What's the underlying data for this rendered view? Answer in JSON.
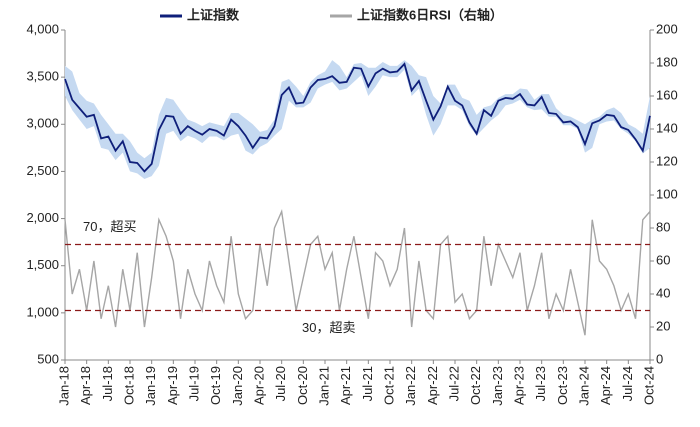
{
  "chart_data": {
    "type": "line",
    "categories": [
      "Jan-18",
      null,
      null,
      "Apr-18",
      null,
      null,
      "Jul-18",
      null,
      null,
      "Oct-18",
      null,
      null,
      "Jan-19",
      null,
      null,
      "Apr-19",
      null,
      null,
      "Jul-19",
      null,
      null,
      "Oct-19",
      null,
      null,
      "Jan-20",
      null,
      null,
      "Apr-20",
      null,
      null,
      "Jul-20",
      null,
      null,
      "Oct-20",
      null,
      null,
      "Jan-21",
      null,
      null,
      "Apr-21",
      null,
      null,
      "Jul-21",
      null,
      null,
      "Oct-21",
      null,
      null,
      "Jan-22",
      null,
      null,
      "Apr-22",
      null,
      null,
      "Jul-22",
      null,
      null,
      "Oct-22",
      null,
      null,
      "Jan-23",
      null,
      null,
      "Apr-23",
      null,
      null,
      "Jul-23",
      null,
      null,
      "Oct-23",
      null,
      null,
      "Jan-24",
      null,
      null,
      "Apr-24",
      null,
      null,
      "Jul-24",
      null,
      null,
      "Oct-24"
    ],
    "series": [
      {
        "name": "上证指数",
        "color": "#0f1f7a",
        "values": [
          3480,
          3260,
          3170,
          3080,
          3100,
          2850,
          2870,
          2720,
          2820,
          2600,
          2590,
          2500,
          2580,
          2940,
          3090,
          3080,
          2900,
          2980,
          2930,
          2890,
          2950,
          2930,
          2880,
          3050,
          2980,
          2880,
          2750,
          2860,
          2850,
          2980,
          3310,
          3390,
          3220,
          3230,
          3390,
          3470,
          3480,
          3510,
          3440,
          3450,
          3600,
          3590,
          3400,
          3540,
          3590,
          3550,
          3560,
          3640,
          3360,
          3460,
          3250,
          3050,
          3190,
          3400,
          3250,
          3200,
          3020,
          2900,
          3150,
          3090,
          3250,
          3280,
          3270,
          3320,
          3210,
          3200,
          3290,
          3120,
          3110,
          3020,
          3030,
          2970,
          2790,
          3010,
          3040,
          3100,
          3090,
          2970,
          2940,
          2840,
          2720,
          3090
        ]
      },
      {
        "name": "上证指数6日RSI（右轴）",
        "color": "#a6a6a6",
        "axis": "y2",
        "values": [
          85,
          40,
          55,
          30,
          60,
          25,
          45,
          20,
          55,
          30,
          65,
          20,
          50,
          85,
          75,
          60,
          25,
          55,
          40,
          30,
          60,
          45,
          35,
          75,
          40,
          25,
          30,
          70,
          45,
          80,
          90,
          60,
          30,
          50,
          70,
          75,
          55,
          65,
          30,
          55,
          75,
          50,
          25,
          65,
          60,
          45,
          55,
          80,
          20,
          60,
          30,
          25,
          70,
          75,
          35,
          40,
          25,
          30,
          75,
          45,
          70,
          60,
          50,
          65,
          30,
          45,
          65,
          25,
          40,
          30,
          55,
          35,
          15,
          85,
          60,
          55,
          45,
          30,
          40,
          25,
          85,
          90
        ]
      }
    ],
    "band": {
      "color": "#c5d9f1",
      "upper": [
        3620,
        3560,
        3330,
        3250,
        3220,
        3100,
        3000,
        2900,
        2900,
        2820,
        2700,
        2640,
        2700,
        3100,
        3280,
        3260,
        3150,
        3050,
        3020,
        2980,
        3020,
        3000,
        2980,
        3120,
        3120,
        3060,
        3000,
        2920,
        2940,
        3050,
        3450,
        3480,
        3400,
        3300,
        3450,
        3520,
        3560,
        3680,
        3620,
        3500,
        3640,
        3650,
        3600,
        3600,
        3660,
        3620,
        3620,
        3680,
        3620,
        3520,
        3500,
        3300,
        3220,
        3420,
        3420,
        3280,
        3250,
        3100,
        3180,
        3200,
        3280,
        3320,
        3320,
        3380,
        3370,
        3260,
        3320,
        3320,
        3170,
        3100,
        3080,
        3040,
        3000,
        3050,
        3080,
        3150,
        3180,
        3120,
        3000,
        2960,
        2900,
        3300
      ],
      "lower": [
        3300,
        3150,
        3050,
        2950,
        2980,
        2750,
        2730,
        2620,
        2700,
        2500,
        2480,
        2420,
        2450,
        2560,
        2900,
        2930,
        2820,
        2880,
        2850,
        2800,
        2870,
        2870,
        2830,
        2880,
        2900,
        2720,
        2680,
        2760,
        2800,
        2880,
        2950,
        3250,
        3180,
        3180,
        3230,
        3380,
        3420,
        3450,
        3360,
        3380,
        3450,
        3520,
        3300,
        3400,
        3520,
        3500,
        3500,
        3580,
        3300,
        3380,
        3100,
        2880,
        3000,
        3200,
        3200,
        3150,
        2980,
        2880,
        2960,
        3040,
        3100,
        3200,
        3220,
        3260,
        3180,
        3150,
        3160,
        3080,
        3080,
        2990,
        2990,
        2950,
        2700,
        2750,
        3000,
        3030,
        3040,
        2950,
        2900,
        2820,
        2690,
        2750
      ]
    },
    "ylim": [
      500,
      4000
    ],
    "yticks": [
      {
        "value": 4000,
        "label": "4,000"
      },
      {
        "value": 3500,
        "label": "3,500"
      },
      {
        "value": 3000,
        "label": "3,000"
      },
      {
        "value": 2500,
        "label": "2,500"
      },
      {
        "value": 2000,
        "label": "2,000"
      },
      {
        "value": 1500,
        "label": "1,500"
      },
      {
        "value": 1000,
        "label": "1,000"
      },
      500
    ],
    "y2lim": [
      0,
      200
    ],
    "y2ticks": [
      200,
      180,
      160,
      140,
      120,
      100,
      80,
      60,
      40,
      20,
      0
    ],
    "reference_lines": [
      {
        "value": 70,
        "label": "70，超买",
        "color": "#8b1a1a"
      },
      {
        "value": 30,
        "label": "30，超卖",
        "color": "#8b1a1a"
      }
    ]
  }
}
